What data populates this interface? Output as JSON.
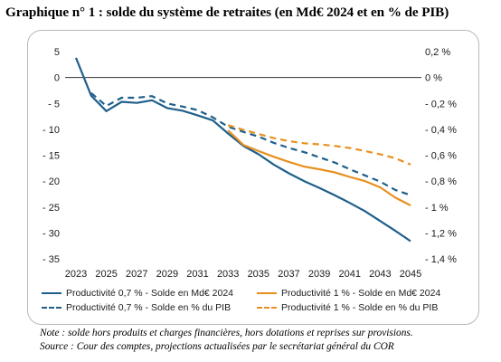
{
  "title": "Graphique n° 1 : solde du système de retraites (en Md€ 2024 et en % de PIB)",
  "note": "Note : solde hors produits et charges financières, hors dotations et reprises sur provisions.",
  "source": "Source : Cour des comptes, projections actualisées par le secrétariat général du COR",
  "colors": {
    "blue": "#1f5f8b",
    "orange": "#e8901f"
  },
  "chart_data": {
    "type": "line",
    "x_ticks": [
      "2023",
      "2025",
      "2027",
      "2029",
      "2031",
      "2033",
      "2035",
      "2037",
      "2039",
      "2041",
      "2043",
      "2045"
    ],
    "y_left": {
      "ylim": [
        -35,
        5
      ],
      "ticks": [
        "5",
        "0",
        "- 5",
        "- 10",
        "- 15",
        "- 20",
        "- 25",
        "- 30",
        "- 35"
      ]
    },
    "y_right": {
      "ylim": [
        -1.4,
        0.2
      ],
      "ticks": [
        "0,2 %",
        "0 %",
        "- 0,2 %",
        "- 0,4 %",
        "- 0,6 %",
        "- 0,8 %",
        "- 1 %",
        "- 1,2 %",
        "- 1,4 %"
      ]
    },
    "series": [
      {
        "name": "Productivité 0,7 % - Solde en Md€ 2024",
        "axis": "left",
        "color": "#1f5f8b",
        "dash": false,
        "x": [
          2023,
          2024,
          2025,
          2026,
          2027,
          2028,
          2029,
          2030,
          2031,
          2032,
          2033,
          2034,
          2035,
          2036,
          2037,
          2038,
          2039,
          2040,
          2041,
          2042,
          2043,
          2044,
          2045
        ],
        "y": [
          3.8,
          -3.5,
          -6.5,
          -4.7,
          -4.9,
          -4.4,
          -5.9,
          -6.4,
          -7.3,
          -8.3,
          -10.8,
          -13.2,
          -14.8,
          -16.8,
          -18.5,
          -20.0,
          -21.3,
          -22.7,
          -24.2,
          -25.8,
          -27.7,
          -29.6,
          -31.6
        ]
      },
      {
        "name": "Productivité 0,7 % - Solde en % du PIB",
        "axis": "left",
        "color": "#1f5f8b",
        "dash": true,
        "x": [
          2024,
          2025,
          2026,
          2027,
          2028,
          2029,
          2030,
          2031,
          2032,
          2033,
          2034,
          2035,
          2036,
          2037,
          2038,
          2039,
          2040,
          2041,
          2042,
          2043,
          2044,
          2045
        ],
        "y": [
          -3.0,
          -5.5,
          -3.9,
          -3.9,
          -3.6,
          -5.0,
          -5.6,
          -6.3,
          -7.7,
          -9.5,
          -10.5,
          -11.4,
          -12.6,
          -13.6,
          -14.4,
          -15.4,
          -16.4,
          -17.7,
          -18.9,
          -20.1,
          -21.7,
          -22.7
        ]
      },
      {
        "name": "Productivité 1 % - Solde en Md€ 2024",
        "axis": "left",
        "color": "#e8901f",
        "dash": false,
        "x": [
          2033,
          2034,
          2035,
          2036,
          2037,
          2038,
          2039,
          2040,
          2041,
          2042,
          2043,
          2044,
          2045
        ],
        "y": [
          -10.2,
          -13.0,
          -14.2,
          -15.3,
          -16.3,
          -17.2,
          -17.7,
          -18.3,
          -19.2,
          -20.0,
          -21.2,
          -23.2,
          -24.7
        ]
      },
      {
        "name": "Productivité 1 % - Solde en % du PIB",
        "axis": "left",
        "color": "#e8901f",
        "dash": true,
        "x": [
          2033,
          2034,
          2035,
          2036,
          2037,
          2038,
          2039,
          2040,
          2041,
          2042,
          2043,
          2044,
          2045
        ],
        "y": [
          -9.2,
          -10.1,
          -10.9,
          -11.7,
          -12.3,
          -12.7,
          -12.9,
          -13.2,
          -13.6,
          -14.2,
          -14.8,
          -15.6,
          -16.8
        ]
      }
    ]
  }
}
